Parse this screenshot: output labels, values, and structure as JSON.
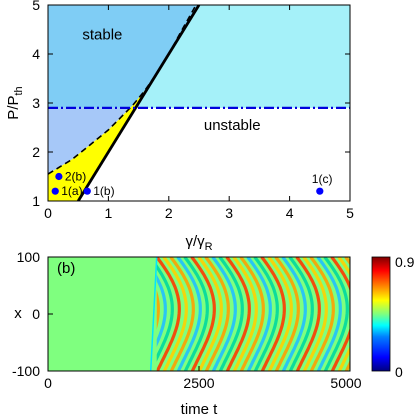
{
  "chart_data": [
    {
      "type": "phase-diagram",
      "panel_label": "",
      "xlabel_main": "γ/γ",
      "xlabel_sub": "R",
      "ylabel_main": "P/P",
      "ylabel_sub": "th",
      "xlim": [
        0,
        5
      ],
      "ylim": [
        1,
        5
      ],
      "xticks": [
        "0",
        "1",
        "2",
        "3",
        "4",
        "5"
      ],
      "yticks": [
        "1",
        "2",
        "3",
        "4",
        "5"
      ],
      "x_tick_values": [
        0,
        1,
        2,
        3,
        4,
        5
      ],
      "y_tick_values": [
        1,
        2,
        3,
        4,
        5
      ],
      "region_labels": [
        {
          "text": "stable",
          "x": 0.9,
          "y": 4.3
        },
        {
          "text": "unstable",
          "x": 3.05,
          "y": 2.45
        }
      ],
      "solid_boundary": [
        [
          0.5,
          1.0
        ],
        [
          2.5,
          5.0
        ]
      ],
      "dashed_boundary": [
        [
          0.0,
          1.55
        ],
        [
          0.2,
          1.7
        ],
        [
          0.4,
          1.85
        ],
        [
          0.6,
          2.05
        ],
        [
          0.8,
          2.25
        ],
        [
          1.0,
          2.45
        ],
        [
          1.2,
          2.7
        ],
        [
          1.4,
          2.95
        ],
        [
          1.6,
          3.25
        ],
        [
          1.8,
          3.6
        ],
        [
          2.0,
          4.0
        ],
        [
          2.2,
          4.45
        ],
        [
          2.45,
          5.0
        ]
      ],
      "dashdot_level": 2.9,
      "points": [
        {
          "label": "1(a)",
          "x": 0.12,
          "y": 1.2
        },
        {
          "label": "2(b)",
          "x": 0.18,
          "y": 1.5
        },
        {
          "label": "1(b)",
          "x": 0.65,
          "y": 1.2
        },
        {
          "label": "1(c)",
          "x": 4.5,
          "y": 1.2
        }
      ],
      "colors": {
        "cyan": "#a5f1f9",
        "blue": "#7fcdf5",
        "lightblue": "#a6c8f8",
        "yellow": "#ffff00",
        "dashdot": "#0000dd",
        "point": "#0000ff"
      }
    },
    {
      "type": "heatmap",
      "panel_label": "(b)",
      "xlabel": "time t",
      "ylabel": "x",
      "xlim": [
        0,
        5000
      ],
      "ylim": [
        -100,
        100
      ],
      "xticks": [
        "0",
        "2500",
        "5000"
      ],
      "yticks": [
        "-100",
        "0",
        "100"
      ],
      "x_tick_values": [
        0,
        2500,
        5000
      ],
      "y_tick_values": [
        -100,
        0,
        100
      ],
      "colorbar": {
        "min": "0",
        "max": "0.9",
        "min_value": 0,
        "max_value": 0.9
      },
      "uniform_value": 0.5,
      "onset_time": 1800,
      "colormap": [
        "#00007f",
        "#0000ff",
        "#007fff",
        "#00ffff",
        "#7fff7f",
        "#ffff00",
        "#ff7f00",
        "#ff0000",
        "#7f0000"
      ]
    }
  ]
}
